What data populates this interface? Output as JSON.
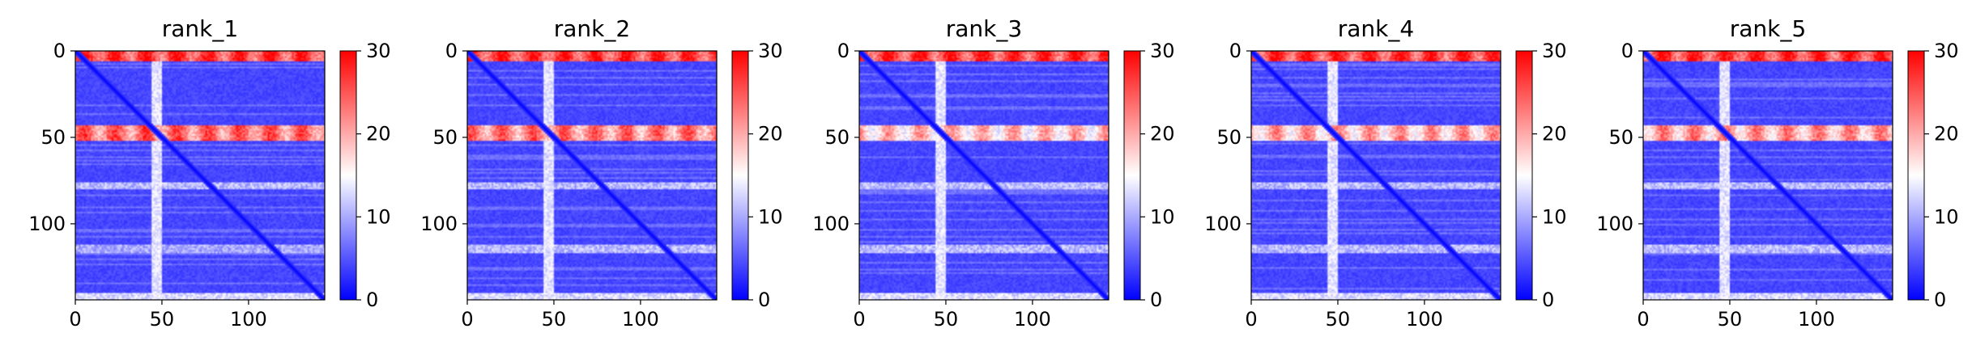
{
  "figure": {
    "panel_count": 5,
    "colormap": "bwr",
    "colormap_colors": [
      "#0000ff",
      "#ffffff",
      "#ff0000"
    ]
  },
  "chart_data": [
    {
      "type": "heatmap",
      "title": "rank_1",
      "xlabel": "",
      "ylabel": "",
      "matrix_size": 144,
      "xlim": [
        0,
        144
      ],
      "ylim": [
        144,
        0
      ],
      "x_ticks": [
        0,
        50,
        100
      ],
      "y_ticks": [
        0,
        50,
        100
      ],
      "colorbar": {
        "vmin": 0,
        "vmax": 30,
        "ticks": [
          0,
          10,
          20,
          30
        ]
      },
      "features": {
        "diagonal_value": 0,
        "background_value": 3,
        "high_rows": [
          {
            "from": 0,
            "to": 6,
            "value": 30
          },
          {
            "from": 43,
            "to": 52,
            "value": 27
          }
        ],
        "bright_band_col": {
          "from": 44,
          "to": 50,
          "value": 15
        },
        "faint_rows": [
          {
            "from": 76,
            "to": 80,
            "value": 12
          },
          {
            "from": 112,
            "to": 117,
            "value": 11
          },
          {
            "from": 140,
            "to": 144,
            "value": 14
          }
        ]
      }
    },
    {
      "type": "heatmap",
      "title": "rank_2",
      "xlabel": "",
      "ylabel": "",
      "matrix_size": 144,
      "xlim": [
        0,
        144
      ],
      "ylim": [
        144,
        0
      ],
      "x_ticks": [
        0,
        50,
        100
      ],
      "y_ticks": [
        0,
        50,
        100
      ],
      "colorbar": {
        "vmin": 0,
        "vmax": 30,
        "ticks": [
          0,
          10,
          20,
          30
        ]
      },
      "features": {
        "diagonal_value": 0,
        "background_value": 3,
        "high_rows": [
          {
            "from": 0,
            "to": 6,
            "value": 30
          },
          {
            "from": 43,
            "to": 52,
            "value": 26
          }
        ],
        "bright_band_col": {
          "from": 44,
          "to": 50,
          "value": 15
        },
        "faint_rows": [
          {
            "from": 76,
            "to": 80,
            "value": 12
          },
          {
            "from": 112,
            "to": 117,
            "value": 12
          },
          {
            "from": 140,
            "to": 144,
            "value": 14
          }
        ]
      }
    },
    {
      "type": "heatmap",
      "title": "rank_3",
      "xlabel": "",
      "ylabel": "",
      "matrix_size": 144,
      "xlim": [
        0,
        144
      ],
      "ylim": [
        144,
        0
      ],
      "x_ticks": [
        0,
        50,
        100
      ],
      "y_ticks": [
        0,
        50,
        100
      ],
      "colorbar": {
        "vmin": 0,
        "vmax": 30,
        "ticks": [
          0,
          10,
          20,
          30
        ]
      },
      "features": {
        "diagonal_value": 0,
        "background_value": 3,
        "high_rows": [
          {
            "from": 0,
            "to": 6,
            "value": 30
          },
          {
            "from": 43,
            "to": 52,
            "value": 22
          }
        ],
        "bright_band_col": {
          "from": 44,
          "to": 50,
          "value": 15
        },
        "faint_rows": [
          {
            "from": 76,
            "to": 80,
            "value": 12
          },
          {
            "from": 112,
            "to": 117,
            "value": 12
          },
          {
            "from": 140,
            "to": 144,
            "value": 14
          }
        ]
      }
    },
    {
      "type": "heatmap",
      "title": "rank_4",
      "xlabel": "",
      "ylabel": "",
      "matrix_size": 144,
      "xlim": [
        0,
        144
      ],
      "ylim": [
        144,
        0
      ],
      "x_ticks": [
        0,
        50,
        100
      ],
      "y_ticks": [
        0,
        50,
        100
      ],
      "colorbar": {
        "vmin": 0,
        "vmax": 30,
        "ticks": [
          0,
          10,
          20,
          30
        ]
      },
      "features": {
        "diagonal_value": 0,
        "background_value": 3,
        "high_rows": [
          {
            "from": 0,
            "to": 6,
            "value": 30
          },
          {
            "from": 43,
            "to": 52,
            "value": 23
          }
        ],
        "bright_band_col": {
          "from": 44,
          "to": 50,
          "value": 15
        },
        "faint_rows": [
          {
            "from": 76,
            "to": 80,
            "value": 12
          },
          {
            "from": 112,
            "to": 117,
            "value": 12
          },
          {
            "from": 140,
            "to": 144,
            "value": 14
          }
        ]
      }
    },
    {
      "type": "heatmap",
      "title": "rank_5",
      "xlabel": "",
      "ylabel": "",
      "matrix_size": 144,
      "xlim": [
        0,
        144
      ],
      "ylim": [
        144,
        0
      ],
      "x_ticks": [
        0,
        50,
        100
      ],
      "y_ticks": [
        0,
        50,
        100
      ],
      "colorbar": {
        "vmin": 0,
        "vmax": 30,
        "ticks": [
          0,
          10,
          20,
          30
        ]
      },
      "features": {
        "diagonal_value": 0,
        "background_value": 3,
        "high_rows": [
          {
            "from": 0,
            "to": 6,
            "value": 30
          },
          {
            "from": 43,
            "to": 52,
            "value": 24
          }
        ],
        "bright_band_col": {
          "from": 44,
          "to": 50,
          "value": 15
        },
        "faint_rows": [
          {
            "from": 76,
            "to": 80,
            "value": 12
          },
          {
            "from": 112,
            "to": 117,
            "value": 12
          },
          {
            "from": 140,
            "to": 144,
            "value": 14
          }
        ]
      }
    }
  ]
}
